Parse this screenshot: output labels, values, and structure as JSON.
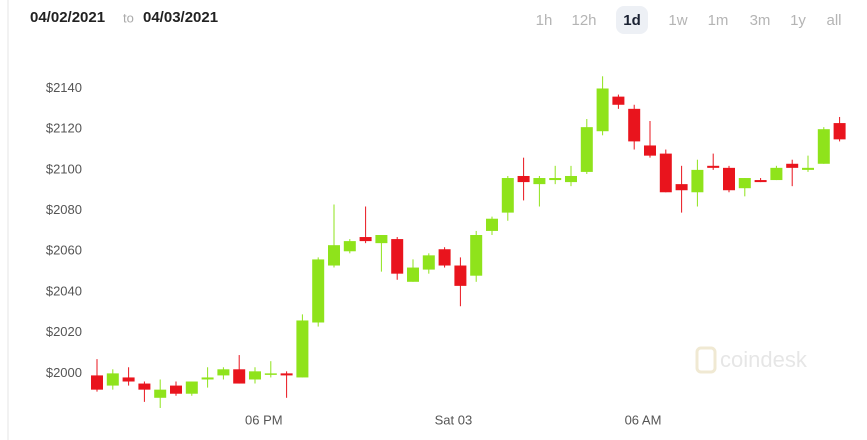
{
  "header": {
    "from": "04/02/2021",
    "to_word": "to",
    "to": "04/03/2021",
    "range_buttons": [
      "1h",
      "12h",
      "1d",
      "1w",
      "1m",
      "3m",
      "1y",
      "all"
    ],
    "selected_index": 2
  },
  "watermark": "coindesk",
  "chart_data": {
    "type": "candlestick",
    "categories": [
      null,
      null,
      null,
      null,
      null,
      null,
      null,
      null,
      null,
      null,
      null,
      "06 PM",
      null,
      null,
      null,
      null,
      null,
      null,
      null,
      null,
      null,
      null,
      null,
      "Sat 03",
      null,
      null,
      null,
      null,
      null,
      null,
      null,
      null,
      null,
      null,
      null,
      "06 AM",
      null,
      null,
      null,
      null,
      null,
      null,
      null,
      null,
      null,
      null,
      null,
      null
    ],
    "open": [
      1999,
      1994,
      1998,
      1995,
      1988,
      1994,
      1990,
      1997,
      1999,
      2002,
      1997,
      2000,
      2000,
      1998,
      2025,
      2053,
      2060,
      2067,
      2064,
      2066,
      2045,
      2051,
      2061,
      2053,
      2048,
      2070,
      2079,
      2097,
      2093,
      2095,
      2094,
      2099,
      2119,
      2136,
      2130,
      2112,
      2108,
      2093,
      2089,
      2102,
      2101,
      2091,
      2095,
      2095,
      2103,
      2100,
      2103,
      2123
    ],
    "high": [
      2007,
      2002,
      2003,
      1996,
      1997,
      1996,
      1996,
      2003,
      2003,
      2009,
      2003,
      2006,
      2001,
      2029,
      2057,
      2083,
      2066,
      2082,
      2068,
      2067,
      2056,
      2059,
      2062,
      2057,
      2070,
      2077,
      2097,
      2106,
      2097,
      2102,
      2102,
      2125,
      2146,
      2137,
      2132,
      2124,
      2110,
      2102,
      2105,
      2108,
      2102,
      2096,
      2096,
      2102,
      2105,
      2107,
      2121,
      2126
    ],
    "low": [
      1991,
      1992,
      1994,
      1986,
      1983,
      1989,
      1989,
      1993,
      1997,
      1995,
      1995,
      1998,
      1988,
      1998,
      2023,
      2052,
      2059,
      2064,
      2050,
      2046,
      2045,
      2049,
      2052,
      2033,
      2045,
      2068,
      2075,
      2085,
      2082,
      2093,
      2092,
      2098,
      2117,
      2130,
      2110,
      2106,
      2089,
      2079,
      2082,
      2100,
      2089,
      2087,
      2094,
      2095,
      2092,
      2099,
      2103,
      2114
    ],
    "close": [
      1992,
      2000,
      1996,
      1992,
      1992,
      1990,
      1996,
      1998,
      2002,
      1995,
      2001,
      2000,
      1999,
      2026,
      2056,
      2063,
      2065,
      2065,
      2068,
      2049,
      2052,
      2058,
      2053,
      2043,
      2068,
      2076,
      2096,
      2094,
      2096,
      2096,
      2097,
      2121,
      2140,
      2132,
      2114,
      2107,
      2089,
      2090,
      2100,
      2101,
      2090,
      2096,
      2094,
      2101,
      2101,
      2101,
      2120,
      2115
    ],
    "up_color": "#8fe31b",
    "down_color": "#e9141d",
    "ylim": [
      1982,
      2154
    ],
    "yticks": [
      {
        "value": 2000,
        "label": "$2000"
      },
      {
        "value": 2020,
        "label": "$2020"
      },
      {
        "value": 2040,
        "label": "$2040"
      },
      {
        "value": 2060,
        "label": "$2060"
      },
      {
        "value": 2080,
        "label": "$2080"
      },
      {
        "value": 2100,
        "label": "$2100"
      },
      {
        "value": 2120,
        "label": "$2120"
      },
      {
        "value": 2140,
        "label": "$2140"
      }
    ]
  }
}
